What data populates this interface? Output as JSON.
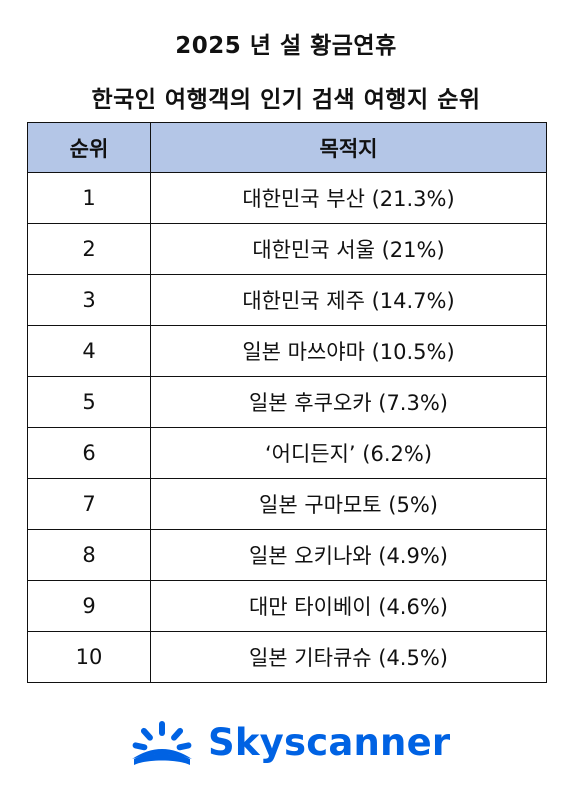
{
  "title_line_1": "2025 년 설 황금연휴",
  "title_line_2": "한국인 여행객의 인기 검색 여행지 순위",
  "table": {
    "header_bg": "#b4c6e7",
    "headers": {
      "rank": "순위",
      "destination": "목적지"
    },
    "rows": [
      {
        "rank": "1",
        "destination": "대한민국 부산 (21.3%)"
      },
      {
        "rank": "2",
        "destination": "대한민국 서울 (21%)"
      },
      {
        "rank": "3",
        "destination": "대한민국 제주 (14.7%)"
      },
      {
        "rank": "4",
        "destination": "일본 마쓰야마 (10.5%)"
      },
      {
        "rank": "5",
        "destination": "일본 후쿠오카 (7.3%)"
      },
      {
        "rank": "6",
        "destination": "‘어디든지’ (6.2%)"
      },
      {
        "rank": "7",
        "destination": "일본 구마모토 (5%)"
      },
      {
        "rank": "8",
        "destination": "일본 오키나와 (4.9%)"
      },
      {
        "rank": "9",
        "destination": "대만 타이베이 (4.6%)"
      },
      {
        "rank": "10",
        "destination": "일본 기타큐슈 (4.5%)"
      }
    ]
  },
  "logo": {
    "text": "Skyscanner",
    "icon": "sunrise-icon",
    "color": "#0062e3"
  }
}
